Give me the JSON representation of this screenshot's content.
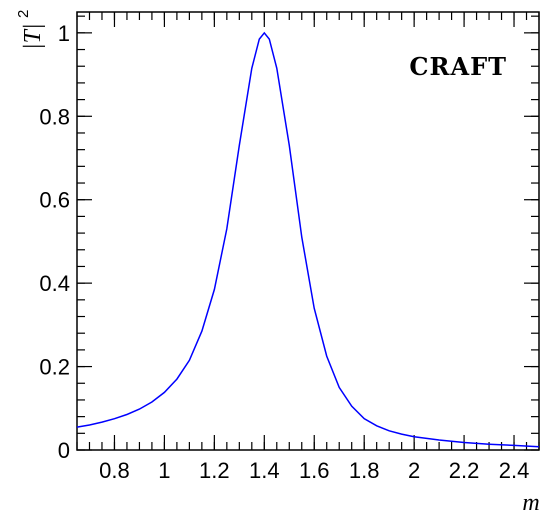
{
  "chart_data": {
    "type": "line",
    "title": "",
    "xlabel": "m",
    "ylabel_main": "|T|",
    "ylabel_sup": "2",
    "annotation": "CRAFT",
    "xlim": [
      0.65,
      2.5
    ],
    "ylim": [
      0,
      1.05
    ],
    "xticks": [
      0.8,
      1,
      1.2,
      1.4,
      1.6,
      1.8,
      2,
      2.2,
      2.4
    ],
    "xtick_labels": [
      "0.8",
      "1",
      "1.2",
      "1.4",
      "1.6",
      "1.8",
      "2",
      "2.2",
      "2.4"
    ],
    "yticks": [
      0,
      0.2,
      0.4,
      0.6,
      0.8,
      1
    ],
    "ytick_labels": [
      "0",
      "0.2",
      "0.4",
      "0.6",
      "0.8",
      "1"
    ],
    "grid": false,
    "series": [
      {
        "color": "#0000ff",
        "x": [
          0.65,
          0.7,
          0.75,
          0.8,
          0.85,
          0.9,
          0.95,
          1.0,
          1.05,
          1.1,
          1.15,
          1.2,
          1.25,
          1.3,
          1.35,
          1.38,
          1.4,
          1.42,
          1.45,
          1.5,
          1.55,
          1.6,
          1.65,
          1.7,
          1.75,
          1.8,
          1.85,
          1.9,
          1.95,
          2.0,
          2.1,
          2.2,
          2.3,
          2.4,
          2.5
        ],
        "y": [
          0.055,
          0.06,
          0.067,
          0.075,
          0.085,
          0.098,
          0.115,
          0.138,
          0.17,
          0.215,
          0.285,
          0.385,
          0.53,
          0.73,
          0.915,
          0.985,
          1.0,
          0.985,
          0.915,
          0.73,
          0.51,
          0.34,
          0.225,
          0.15,
          0.105,
          0.075,
          0.058,
          0.046,
          0.038,
          0.032,
          0.024,
          0.018,
          0.014,
          0.011,
          0.008
        ]
      }
    ]
  }
}
